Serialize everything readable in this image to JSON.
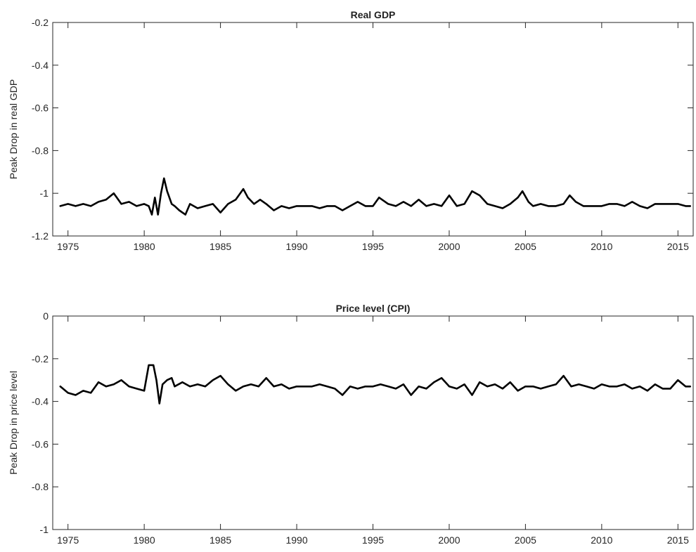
{
  "chart_data": [
    {
      "type": "line",
      "title": "Real GDP",
      "xlabel": "",
      "ylabel": "Peak Drop in real GDP",
      "xlim": [
        1974,
        2016
      ],
      "ylim": [
        -1.2,
        -0.2
      ],
      "xticks": [
        "1975",
        "1980",
        "1985",
        "1990",
        "1995",
        "2000",
        "2005",
        "2010",
        "2015"
      ],
      "yticks": [
        "-0.2",
        "-0.4",
        "-0.6",
        "-0.8",
        "-1",
        "-1.2"
      ],
      "grid": false,
      "line_color": "#000000",
      "series": [
        {
          "x": [
            1974.5,
            1975.0,
            1975.5,
            1976.0,
            1976.5,
            1977.0,
            1977.5,
            1978.0,
            1978.2,
            1978.5,
            1979.0,
            1979.5,
            1980.0,
            1980.3,
            1980.5,
            1980.7,
            1980.9,
            1981.1,
            1981.3,
            1981.5,
            1981.8,
            1982.0,
            1982.3,
            1982.7,
            1983.0,
            1983.5,
            1984.0,
            1984.5,
            1985.0,
            1985.5,
            1986.0,
            1986.5,
            1986.8,
            1987.2,
            1987.6,
            1988.0,
            1988.5,
            1989.0,
            1989.5,
            1990.0,
            1990.5,
            1991.0,
            1991.5,
            1992.0,
            1992.5,
            1993.0,
            1993.5,
            1994.0,
            1994.5,
            1995.0,
            1995.4,
            1996.0,
            1996.5,
            1997.0,
            1997.5,
            1998.0,
            1998.5,
            1999.0,
            1999.5,
            2000.0,
            2000.5,
            2001.0,
            2001.5,
            2002.0,
            2002.5,
            2003.0,
            2003.5,
            2004.0,
            2004.5,
            2004.8,
            2005.2,
            2005.5,
            2006.0,
            2006.5,
            2007.0,
            2007.5,
            2007.9,
            2008.3,
            2008.8,
            2009.5,
            2010.0,
            2010.5,
            2011.0,
            2011.5,
            2012.0,
            2012.5,
            2013.0,
            2013.5,
            2014.0,
            2014.5,
            2015.0,
            2015.5,
            2015.8
          ],
          "values": [
            -1.06,
            -1.05,
            -1.06,
            -1.05,
            -1.06,
            -1.04,
            -1.03,
            -1.0,
            -1.02,
            -1.05,
            -1.04,
            -1.06,
            -1.05,
            -1.06,
            -1.1,
            -1.02,
            -1.1,
            -1.0,
            -0.93,
            -0.99,
            -1.05,
            -1.06,
            -1.08,
            -1.1,
            -1.05,
            -1.07,
            -1.06,
            -1.05,
            -1.09,
            -1.05,
            -1.03,
            -0.98,
            -1.02,
            -1.05,
            -1.03,
            -1.05,
            -1.08,
            -1.06,
            -1.07,
            -1.06,
            -1.06,
            -1.06,
            -1.07,
            -1.06,
            -1.06,
            -1.08,
            -1.06,
            -1.04,
            -1.06,
            -1.06,
            -1.02,
            -1.05,
            -1.06,
            -1.04,
            -1.06,
            -1.03,
            -1.06,
            -1.05,
            -1.06,
            -1.01,
            -1.06,
            -1.05,
            -0.99,
            -1.01,
            -1.05,
            -1.06,
            -1.07,
            -1.05,
            -1.02,
            -0.99,
            -1.04,
            -1.06,
            -1.05,
            -1.06,
            -1.06,
            -1.05,
            -1.01,
            -1.04,
            -1.06,
            -1.06,
            -1.06,
            -1.05,
            -1.05,
            -1.06,
            -1.04,
            -1.06,
            -1.07,
            -1.05,
            -1.05,
            -1.05,
            -1.05,
            -1.06,
            -1.06
          ]
        }
      ]
    },
    {
      "type": "line",
      "title": "Price level (CPI)",
      "xlabel": "",
      "ylabel": "Peak Drop in price level",
      "xlim": [
        1974,
        2016
      ],
      "ylim": [
        -1.0,
        0.0
      ],
      "xticks": [
        "1975",
        "1980",
        "1985",
        "1990",
        "1995",
        "2000",
        "2005",
        "2010",
        "2015"
      ],
      "yticks": [
        "0",
        "-0.2",
        "-0.4",
        "-0.6",
        "-0.8",
        "-1"
      ],
      "grid": false,
      "line_color": "#000000",
      "series": [
        {
          "x": [
            1974.5,
            1975.0,
            1975.5,
            1976.0,
            1976.5,
            1977.0,
            1977.5,
            1978.0,
            1978.5,
            1979.0,
            1979.5,
            1980.0,
            1980.3,
            1980.6,
            1980.8,
            1981.0,
            1981.2,
            1981.5,
            1981.8,
            1982.0,
            1982.5,
            1983.0,
            1983.5,
            1984.0,
            1984.5,
            1985.0,
            1985.5,
            1986.0,
            1986.5,
            1987.0,
            1987.5,
            1988.0,
            1988.5,
            1989.0,
            1989.5,
            1990.0,
            1990.5,
            1991.0,
            1991.5,
            1992.0,
            1992.5,
            1993.0,
            1993.5,
            1994.0,
            1994.5,
            1995.0,
            1995.5,
            1996.0,
            1996.5,
            1997.0,
            1997.5,
            1998.0,
            1998.5,
            1999.0,
            1999.5,
            2000.0,
            2000.5,
            2001.0,
            2001.5,
            2002.0,
            2002.5,
            2003.0,
            2003.5,
            2004.0,
            2004.5,
            2005.0,
            2005.5,
            2006.0,
            2006.5,
            2007.0,
            2007.5,
            2008.0,
            2008.5,
            2009.0,
            2009.5,
            2010.0,
            2010.5,
            2011.0,
            2011.5,
            2012.0,
            2012.5,
            2013.0,
            2013.5,
            2014.0,
            2014.5,
            2015.0,
            2015.5,
            2015.8
          ],
          "values": [
            -0.33,
            -0.36,
            -0.37,
            -0.35,
            -0.36,
            -0.31,
            -0.33,
            -0.32,
            -0.3,
            -0.33,
            -0.34,
            -0.35,
            -0.23,
            -0.23,
            -0.3,
            -0.41,
            -0.32,
            -0.3,
            -0.29,
            -0.33,
            -0.31,
            -0.33,
            -0.32,
            -0.33,
            -0.3,
            -0.28,
            -0.32,
            -0.35,
            -0.33,
            -0.32,
            -0.33,
            -0.29,
            -0.33,
            -0.32,
            -0.34,
            -0.33,
            -0.33,
            -0.33,
            -0.32,
            -0.33,
            -0.34,
            -0.37,
            -0.33,
            -0.34,
            -0.33,
            -0.33,
            -0.32,
            -0.33,
            -0.34,
            -0.32,
            -0.37,
            -0.33,
            -0.34,
            -0.31,
            -0.29,
            -0.33,
            -0.34,
            -0.32,
            -0.37,
            -0.31,
            -0.33,
            -0.32,
            -0.34,
            -0.31,
            -0.35,
            -0.33,
            -0.33,
            -0.34,
            -0.33,
            -0.32,
            -0.28,
            -0.33,
            -0.32,
            -0.33,
            -0.34,
            -0.32,
            -0.33,
            -0.33,
            -0.32,
            -0.34,
            -0.33,
            -0.35,
            -0.32,
            -0.34,
            -0.34,
            -0.3,
            -0.33,
            -0.33
          ]
        }
      ]
    }
  ]
}
